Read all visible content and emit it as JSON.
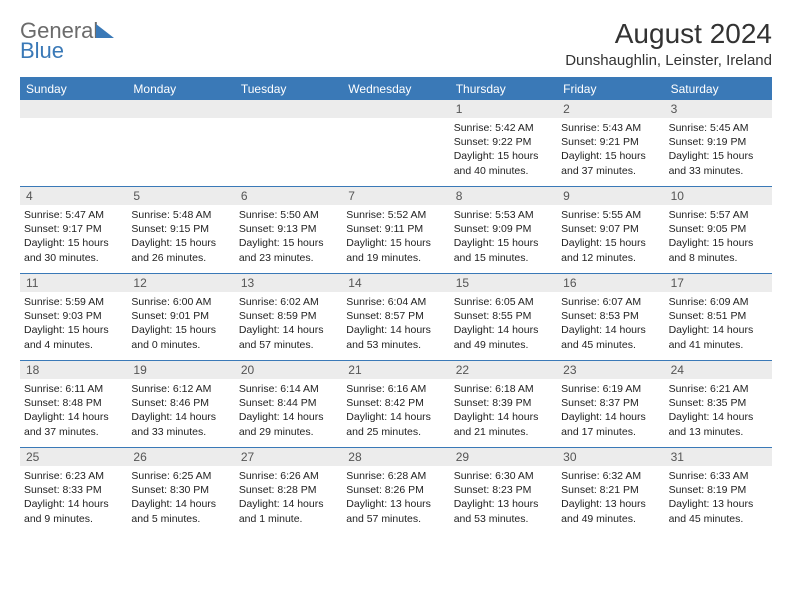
{
  "logo": {
    "general": "General",
    "blue": "Blue"
  },
  "title": "August 2024",
  "location": "Dunshaughlin, Leinster, Ireland",
  "colors": {
    "header_bg": "#3a79b7",
    "daynum_bg": "#ececec",
    "text": "#222222",
    "border": "#3a79b7"
  },
  "dayHeaders": [
    "Sunday",
    "Monday",
    "Tuesday",
    "Wednesday",
    "Thursday",
    "Friday",
    "Saturday"
  ],
  "weeks": [
    [
      null,
      null,
      null,
      null,
      {
        "n": "1",
        "sr": "5:42 AM",
        "ss": "9:22 PM",
        "dl": "15 hours and 40 minutes."
      },
      {
        "n": "2",
        "sr": "5:43 AM",
        "ss": "9:21 PM",
        "dl": "15 hours and 37 minutes."
      },
      {
        "n": "3",
        "sr": "5:45 AM",
        "ss": "9:19 PM",
        "dl": "15 hours and 33 minutes."
      }
    ],
    [
      {
        "n": "4",
        "sr": "5:47 AM",
        "ss": "9:17 PM",
        "dl": "15 hours and 30 minutes."
      },
      {
        "n": "5",
        "sr": "5:48 AM",
        "ss": "9:15 PM",
        "dl": "15 hours and 26 minutes."
      },
      {
        "n": "6",
        "sr": "5:50 AM",
        "ss": "9:13 PM",
        "dl": "15 hours and 23 minutes."
      },
      {
        "n": "7",
        "sr": "5:52 AM",
        "ss": "9:11 PM",
        "dl": "15 hours and 19 minutes."
      },
      {
        "n": "8",
        "sr": "5:53 AM",
        "ss": "9:09 PM",
        "dl": "15 hours and 15 minutes."
      },
      {
        "n": "9",
        "sr": "5:55 AM",
        "ss": "9:07 PM",
        "dl": "15 hours and 12 minutes."
      },
      {
        "n": "10",
        "sr": "5:57 AM",
        "ss": "9:05 PM",
        "dl": "15 hours and 8 minutes."
      }
    ],
    [
      {
        "n": "11",
        "sr": "5:59 AM",
        "ss": "9:03 PM",
        "dl": "15 hours and 4 minutes."
      },
      {
        "n": "12",
        "sr": "6:00 AM",
        "ss": "9:01 PM",
        "dl": "15 hours and 0 minutes."
      },
      {
        "n": "13",
        "sr": "6:02 AM",
        "ss": "8:59 PM",
        "dl": "14 hours and 57 minutes."
      },
      {
        "n": "14",
        "sr": "6:04 AM",
        "ss": "8:57 PM",
        "dl": "14 hours and 53 minutes."
      },
      {
        "n": "15",
        "sr": "6:05 AM",
        "ss": "8:55 PM",
        "dl": "14 hours and 49 minutes."
      },
      {
        "n": "16",
        "sr": "6:07 AM",
        "ss": "8:53 PM",
        "dl": "14 hours and 45 minutes."
      },
      {
        "n": "17",
        "sr": "6:09 AM",
        "ss": "8:51 PM",
        "dl": "14 hours and 41 minutes."
      }
    ],
    [
      {
        "n": "18",
        "sr": "6:11 AM",
        "ss": "8:48 PM",
        "dl": "14 hours and 37 minutes."
      },
      {
        "n": "19",
        "sr": "6:12 AM",
        "ss": "8:46 PM",
        "dl": "14 hours and 33 minutes."
      },
      {
        "n": "20",
        "sr": "6:14 AM",
        "ss": "8:44 PM",
        "dl": "14 hours and 29 minutes."
      },
      {
        "n": "21",
        "sr": "6:16 AM",
        "ss": "8:42 PM",
        "dl": "14 hours and 25 minutes."
      },
      {
        "n": "22",
        "sr": "6:18 AM",
        "ss": "8:39 PM",
        "dl": "14 hours and 21 minutes."
      },
      {
        "n": "23",
        "sr": "6:19 AM",
        "ss": "8:37 PM",
        "dl": "14 hours and 17 minutes."
      },
      {
        "n": "24",
        "sr": "6:21 AM",
        "ss": "8:35 PM",
        "dl": "14 hours and 13 minutes."
      }
    ],
    [
      {
        "n": "25",
        "sr": "6:23 AM",
        "ss": "8:33 PM",
        "dl": "14 hours and 9 minutes."
      },
      {
        "n": "26",
        "sr": "6:25 AM",
        "ss": "8:30 PM",
        "dl": "14 hours and 5 minutes."
      },
      {
        "n": "27",
        "sr": "6:26 AM",
        "ss": "8:28 PM",
        "dl": "14 hours and 1 minute."
      },
      {
        "n": "28",
        "sr": "6:28 AM",
        "ss": "8:26 PM",
        "dl": "13 hours and 57 minutes."
      },
      {
        "n": "29",
        "sr": "6:30 AM",
        "ss": "8:23 PM",
        "dl": "13 hours and 53 minutes."
      },
      {
        "n": "30",
        "sr": "6:32 AM",
        "ss": "8:21 PM",
        "dl": "13 hours and 49 minutes."
      },
      {
        "n": "31",
        "sr": "6:33 AM",
        "ss": "8:19 PM",
        "dl": "13 hours and 45 minutes."
      }
    ]
  ],
  "labels": {
    "sunrise": "Sunrise:",
    "sunset": "Sunset:",
    "daylight": "Daylight:"
  }
}
